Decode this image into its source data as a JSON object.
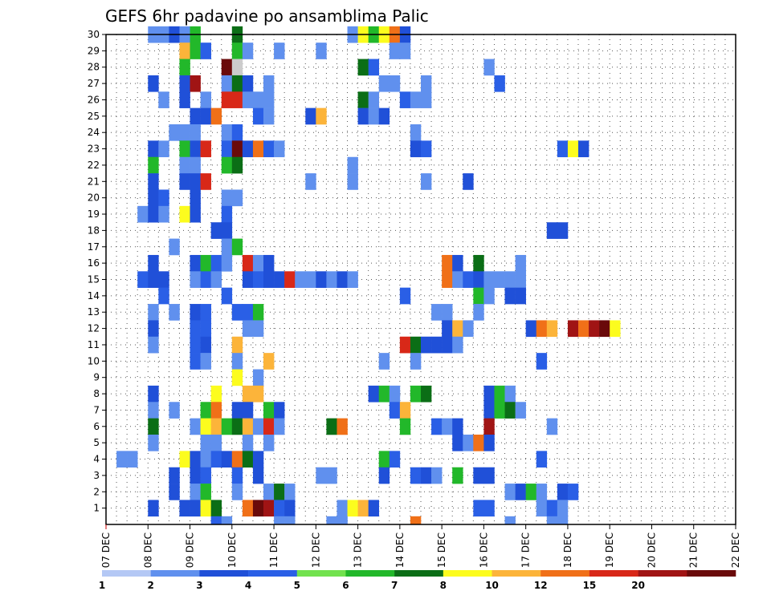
{
  "chart_data": {
    "type": "heatmap",
    "title": "GEFS 6hr padavine po ansamblima Palic",
    "xlabel": "",
    "ylabel": "",
    "x_ticks": [
      "07 DEC",
      "08 DEC",
      "09 DEC",
      "10 DEC",
      "11 DEC",
      "12 DEC",
      "13 DEC",
      "14 DEC",
      "15 DEC",
      "16 DEC",
      "17 DEC",
      "18 DEC",
      "19 DEC",
      "20 DEC",
      "21 DEC",
      "22 DEC"
    ],
    "y_ticks": [
      "1",
      "2",
      "3",
      "4",
      "5",
      "6",
      "7",
      "8",
      "9",
      "10",
      "11",
      "12",
      "13",
      "14",
      "15",
      "16",
      "17",
      "18",
      "19",
      "20",
      "21",
      "22",
      "23",
      "24",
      "25",
      "26",
      "27",
      "28",
      "29",
      "30"
    ],
    "xlim_steps": [
      0,
      60
    ],
    "ylim_members": [
      0,
      30
    ],
    "colorbar": {
      "labels": [
        "1",
        "2",
        "3",
        "4",
        "5",
        "6",
        "7",
        "8",
        "10",
        "12",
        "15",
        "20"
      ],
      "colors": [
        "#b4c8f5",
        "#6090ee",
        "#2050d8",
        "#2a5fe6",
        "#72e24e",
        "#22b82a",
        "#0b6e16",
        "#fcfc1e",
        "#fcb43a",
        "#f07018",
        "#d82818",
        "#a01414",
        "#6a0a0a"
      ]
    },
    "cells": [
      [
        4,
        30,
        1
      ],
      [
        5,
        30,
        1
      ],
      [
        6,
        30,
        2
      ],
      [
        7,
        30,
        1
      ],
      [
        8,
        30,
        5
      ],
      [
        12,
        30,
        6
      ],
      [
        23,
        30,
        1
      ],
      [
        24,
        30,
        7
      ],
      [
        25,
        30,
        5
      ],
      [
        26,
        30,
        7
      ],
      [
        27,
        30,
        9
      ],
      [
        28,
        30,
        2
      ],
      [
        7,
        29,
        8
      ],
      [
        8,
        29,
        5
      ],
      [
        9,
        29,
        3
      ],
      [
        12,
        29,
        5
      ],
      [
        13,
        29,
        1
      ],
      [
        16,
        29,
        1
      ],
      [
        20,
        29,
        1
      ],
      [
        27,
        29,
        1
      ],
      [
        28,
        29,
        1
      ],
      [
        7,
        28,
        5
      ],
      [
        11,
        28,
        12
      ],
      [
        12,
        28,
        13
      ],
      [
        24,
        28,
        6
      ],
      [
        25,
        28,
        3
      ],
      [
        36,
        28,
        1
      ],
      [
        4,
        27,
        2
      ],
      [
        7,
        27,
        2
      ],
      [
        8,
        27,
        11
      ],
      [
        11,
        27,
        1
      ],
      [
        12,
        27,
        6
      ],
      [
        13,
        27,
        2
      ],
      [
        15,
        27,
        1
      ],
      [
        26,
        27,
        1
      ],
      [
        27,
        27,
        1
      ],
      [
        30,
        27,
        1
      ],
      [
        37,
        27,
        3
      ],
      [
        5,
        26,
        1
      ],
      [
        7,
        26,
        2
      ],
      [
        9,
        26,
        1
      ],
      [
        11,
        26,
        10
      ],
      [
        12,
        26,
        10
      ],
      [
        13,
        26,
        1
      ],
      [
        14,
        26,
        1
      ],
      [
        15,
        26,
        1
      ],
      [
        24,
        26,
        6
      ],
      [
        25,
        26,
        1
      ],
      [
        28,
        26,
        3
      ],
      [
        29,
        26,
        1
      ],
      [
        30,
        26,
        1
      ],
      [
        8,
        25,
        2
      ],
      [
        9,
        25,
        2
      ],
      [
        10,
        25,
        9
      ],
      [
        14,
        25,
        3
      ],
      [
        15,
        25,
        1
      ],
      [
        19,
        25,
        2
      ],
      [
        20,
        25,
        8
      ],
      [
        24,
        25,
        2
      ],
      [
        25,
        25,
        1
      ],
      [
        26,
        25,
        2
      ],
      [
        6,
        24,
        1
      ],
      [
        7,
        24,
        1
      ],
      [
        8,
        24,
        1
      ],
      [
        11,
        24,
        1
      ],
      [
        12,
        24,
        3
      ],
      [
        29,
        24,
        1
      ],
      [
        4,
        23,
        2
      ],
      [
        5,
        23,
        1
      ],
      [
        7,
        23,
        5
      ],
      [
        8,
        23,
        2
      ],
      [
        9,
        23,
        10
      ],
      [
        11,
        23,
        3
      ],
      [
        12,
        23,
        12
      ],
      [
        13,
        23,
        2
      ],
      [
        14,
        23,
        9
      ],
      [
        15,
        23,
        3
      ],
      [
        16,
        23,
        1
      ],
      [
        29,
        23,
        2
      ],
      [
        30,
        23,
        3
      ],
      [
        43,
        23,
        3
      ],
      [
        44,
        23,
        7
      ],
      [
        45,
        23,
        2
      ],
      [
        4,
        22,
        5
      ],
      [
        7,
        22,
        1
      ],
      [
        8,
        22,
        1
      ],
      [
        11,
        22,
        5
      ],
      [
        12,
        22,
        6
      ],
      [
        23,
        22,
        1
      ],
      [
        4,
        21,
        2
      ],
      [
        7,
        21,
        2
      ],
      [
        8,
        21,
        2
      ],
      [
        9,
        21,
        10
      ],
      [
        19,
        21,
        1
      ],
      [
        23,
        21,
        1
      ],
      [
        30,
        21,
        1
      ],
      [
        34,
        21,
        2
      ],
      [
        4,
        20,
        2
      ],
      [
        5,
        20,
        3
      ],
      [
        8,
        20,
        2
      ],
      [
        11,
        20,
        1
      ],
      [
        12,
        20,
        1
      ],
      [
        3,
        19,
        1
      ],
      [
        4,
        19,
        2
      ],
      [
        5,
        19,
        1
      ],
      [
        7,
        19,
        7
      ],
      [
        8,
        19,
        2
      ],
      [
        11,
        19,
        3
      ],
      [
        10,
        18,
        2
      ],
      [
        11,
        18,
        2
      ],
      [
        42,
        18,
        2
      ],
      [
        43,
        18,
        2
      ],
      [
        6,
        17,
        1
      ],
      [
        11,
        17,
        1
      ],
      [
        12,
        17,
        5
      ],
      [
        4,
        16,
        2
      ],
      [
        8,
        16,
        2
      ],
      [
        9,
        16,
        5
      ],
      [
        10,
        16,
        3
      ],
      [
        11,
        16,
        1
      ],
      [
        13,
        16,
        10
      ],
      [
        14,
        16,
        1
      ],
      [
        15,
        16,
        2
      ],
      [
        32,
        16,
        9
      ],
      [
        33,
        16,
        2
      ],
      [
        35,
        16,
        6
      ],
      [
        39,
        16,
        1
      ],
      [
        3,
        15,
        3
      ],
      [
        4,
        15,
        2
      ],
      [
        5,
        15,
        2
      ],
      [
        8,
        15,
        1
      ],
      [
        9,
        15,
        3
      ],
      [
        10,
        15,
        1
      ],
      [
        13,
        15,
        2
      ],
      [
        14,
        15,
        3
      ],
      [
        15,
        15,
        2
      ],
      [
        16,
        15,
        2
      ],
      [
        17,
        15,
        10
      ],
      [
        18,
        15,
        1
      ],
      [
        19,
        15,
        1
      ],
      [
        20,
        15,
        2
      ],
      [
        21,
        15,
        1
      ],
      [
        22,
        15,
        2
      ],
      [
        23,
        15,
        1
      ],
      [
        32,
        15,
        9
      ],
      [
        33,
        15,
        1
      ],
      [
        34,
        15,
        3
      ],
      [
        35,
        15,
        2
      ],
      [
        36,
        15,
        1
      ],
      [
        37,
        15,
        1
      ],
      [
        38,
        15,
        1
      ],
      [
        39,
        15,
        1
      ],
      [
        5,
        14,
        3
      ],
      [
        11,
        14,
        3
      ],
      [
        28,
        14,
        3
      ],
      [
        35,
        14,
        5
      ],
      [
        36,
        14,
        1
      ],
      [
        38,
        14,
        2
      ],
      [
        39,
        14,
        2
      ],
      [
        4,
        13,
        1
      ],
      [
        6,
        13,
        1
      ],
      [
        8,
        13,
        2
      ],
      [
        9,
        13,
        3
      ],
      [
        12,
        13,
        3
      ],
      [
        13,
        13,
        3
      ],
      [
        14,
        13,
        5
      ],
      [
        31,
        13,
        1
      ],
      [
        32,
        13,
        1
      ],
      [
        35,
        13,
        1
      ],
      [
        4,
        12,
        2
      ],
      [
        8,
        12,
        3
      ],
      [
        9,
        12,
        3
      ],
      [
        13,
        12,
        1
      ],
      [
        14,
        12,
        1
      ],
      [
        32,
        12,
        2
      ],
      [
        33,
        12,
        8
      ],
      [
        34,
        12,
        1
      ],
      [
        40,
        12,
        2
      ],
      [
        41,
        12,
        9
      ],
      [
        42,
        12,
        8
      ],
      [
        44,
        12,
        11
      ],
      [
        45,
        12,
        9
      ],
      [
        46,
        12,
        11
      ],
      [
        47,
        12,
        12
      ],
      [
        48,
        12,
        7
      ],
      [
        4,
        11,
        1
      ],
      [
        8,
        11,
        3
      ],
      [
        9,
        11,
        2
      ],
      [
        12,
        11,
        8
      ],
      [
        28,
        11,
        10
      ],
      [
        29,
        11,
        6
      ],
      [
        30,
        11,
        2
      ],
      [
        31,
        11,
        2
      ],
      [
        32,
        11,
        2
      ],
      [
        33,
        11,
        1
      ],
      [
        8,
        10,
        3
      ],
      [
        9,
        10,
        1
      ],
      [
        12,
        10,
        1
      ],
      [
        15,
        10,
        8
      ],
      [
        26,
        10,
        1
      ],
      [
        29,
        10,
        1
      ],
      [
        41,
        10,
        3
      ],
      [
        12,
        9,
        7
      ],
      [
        14,
        9,
        1
      ],
      [
        4,
        8,
        2
      ],
      [
        10,
        8,
        7
      ],
      [
        13,
        8,
        8
      ],
      [
        14,
        8,
        8
      ],
      [
        25,
        8,
        2
      ],
      [
        26,
        8,
        5
      ],
      [
        27,
        8,
        1
      ],
      [
        29,
        8,
        5
      ],
      [
        30,
        8,
        6
      ],
      [
        36,
        8,
        2
      ],
      [
        37,
        8,
        5
      ],
      [
        38,
        8,
        1
      ],
      [
        4,
        7,
        1
      ],
      [
        6,
        7,
        1
      ],
      [
        9,
        7,
        5
      ],
      [
        10,
        7,
        9
      ],
      [
        12,
        7,
        2
      ],
      [
        13,
        7,
        2
      ],
      [
        15,
        7,
        5
      ],
      [
        16,
        7,
        2
      ],
      [
        27,
        7,
        3
      ],
      [
        28,
        7,
        8
      ],
      [
        36,
        7,
        2
      ],
      [
        37,
        7,
        5
      ],
      [
        38,
        7,
        6
      ],
      [
        39,
        7,
        1
      ],
      [
        4,
        6,
        6
      ],
      [
        8,
        6,
        1
      ],
      [
        9,
        6,
        7
      ],
      [
        10,
        6,
        8
      ],
      [
        11,
        6,
        5
      ],
      [
        12,
        6,
        6
      ],
      [
        13,
        6,
        8
      ],
      [
        14,
        6,
        1
      ],
      [
        15,
        6,
        10
      ],
      [
        16,
        6,
        1
      ],
      [
        21,
        6,
        6
      ],
      [
        22,
        6,
        9
      ],
      [
        28,
        6,
        5
      ],
      [
        31,
        6,
        3
      ],
      [
        32,
        6,
        1
      ],
      [
        33,
        6,
        2
      ],
      [
        36,
        6,
        11
      ],
      [
        42,
        6,
        1
      ],
      [
        4,
        5,
        1
      ],
      [
        9,
        5,
        1
      ],
      [
        10,
        5,
        1
      ],
      [
        13,
        5,
        1
      ],
      [
        15,
        5,
        1
      ],
      [
        33,
        5,
        2
      ],
      [
        34,
        5,
        1
      ],
      [
        35,
        5,
        9
      ],
      [
        36,
        5,
        2
      ],
      [
        1,
        4,
        1
      ],
      [
        2,
        4,
        1
      ],
      [
        7,
        4,
        7
      ],
      [
        8,
        4,
        2
      ],
      [
        9,
        4,
        1
      ],
      [
        10,
        4,
        3
      ],
      [
        11,
        4,
        2
      ],
      [
        12,
        4,
        9
      ],
      [
        13,
        4,
        6
      ],
      [
        14,
        4,
        2
      ],
      [
        26,
        4,
        5
      ],
      [
        27,
        4,
        3
      ],
      [
        41,
        4,
        3
      ],
      [
        6,
        3,
        2
      ],
      [
        8,
        3,
        2
      ],
      [
        9,
        3,
        3
      ],
      [
        12,
        3,
        3
      ],
      [
        14,
        3,
        2
      ],
      [
        20,
        3,
        1
      ],
      [
        21,
        3,
        1
      ],
      [
        26,
        3,
        2
      ],
      [
        29,
        3,
        3
      ],
      [
        30,
        3,
        2
      ],
      [
        31,
        3,
        1
      ],
      [
        33,
        3,
        5
      ],
      [
        35,
        3,
        2
      ],
      [
        36,
        3,
        2
      ],
      [
        6,
        2,
        2
      ],
      [
        8,
        2,
        1
      ],
      [
        9,
        2,
        5
      ],
      [
        12,
        2,
        1
      ],
      [
        15,
        2,
        1
      ],
      [
        16,
        2,
        6
      ],
      [
        17,
        2,
        1
      ],
      [
        38,
        2,
        1
      ],
      [
        39,
        2,
        2
      ],
      [
        40,
        2,
        5
      ],
      [
        41,
        2,
        1
      ],
      [
        43,
        2,
        2
      ],
      [
        44,
        2,
        3
      ],
      [
        4,
        1,
        2
      ],
      [
        7,
        1,
        2
      ],
      [
        8,
        1,
        2
      ],
      [
        9,
        1,
        7
      ],
      [
        10,
        1,
        6
      ],
      [
        13,
        1,
        9
      ],
      [
        14,
        1,
        12
      ],
      [
        15,
        1,
        11
      ],
      [
        16,
        1,
        3
      ],
      [
        17,
        1,
        2
      ],
      [
        22,
        1,
        1
      ],
      [
        23,
        1,
        7
      ],
      [
        24,
        1,
        8
      ],
      [
        25,
        1,
        2
      ],
      [
        35,
        1,
        3
      ],
      [
        36,
        1,
        3
      ],
      [
        41,
        1,
        1
      ],
      [
        42,
        1,
        3
      ],
      [
        43,
        1,
        1
      ],
      [
        10,
        0,
        3
      ],
      [
        11,
        0,
        1
      ],
      [
        16,
        0,
        1
      ],
      [
        17,
        0,
        1
      ],
      [
        21,
        0,
        1
      ],
      [
        22,
        0,
        1
      ],
      [
        29,
        0,
        9
      ],
      [
        38,
        0,
        1
      ],
      [
        42,
        0,
        1
      ],
      [
        43,
        0,
        1
      ]
    ]
  }
}
